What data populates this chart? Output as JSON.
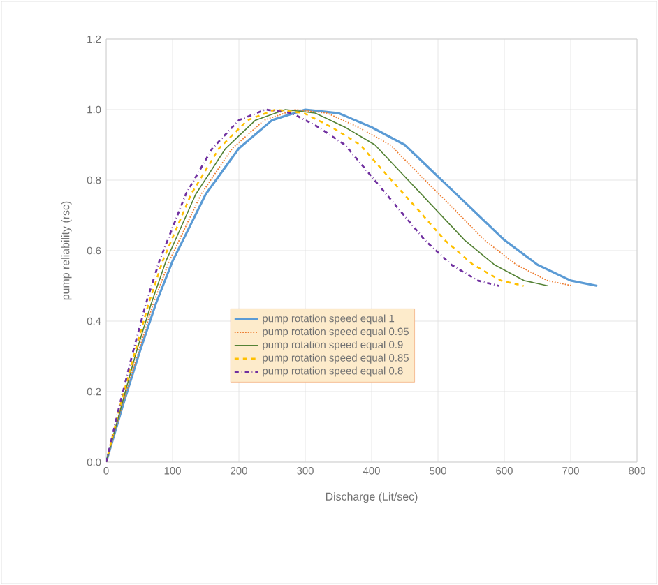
{
  "chart_data": {
    "type": "line",
    "xlabel": "Discharge (Lit/sec)",
    "ylabel": "pump reliability (rsc)",
    "xlim": [
      0,
      800
    ],
    "xticks": [
      0,
      100,
      200,
      300,
      400,
      500,
      600,
      700,
      800
    ],
    "ylim": [
      0,
      1.2
    ],
    "yticks": [
      {
        "value": 0,
        "label": "0.0"
      },
      {
        "value": 0.2,
        "label": "0.2"
      },
      {
        "value": 0.4,
        "label": "0.4"
      },
      {
        "value": 0.6,
        "label": "0.6"
      },
      {
        "value": 0.8,
        "label": "0.8"
      },
      {
        "value": 1.0,
        "label": "1.0"
      },
      {
        "value": 1.2,
        "label": "1.2"
      }
    ],
    "grid": true,
    "legend": "bottom",
    "marker": "none",
    "series": [
      {
        "name": "pump rotation speed equal 1",
        "color": "#5b9bd5",
        "line_style": "solid",
        "x": [
          0,
          25,
          50,
          75,
          100,
          150,
          200,
          250,
          300,
          350,
          400,
          450,
          500,
          550,
          600,
          650,
          700,
          740
        ],
        "values": [
          0,
          0.16,
          0.31,
          0.45,
          0.57,
          0.76,
          0.89,
          0.97,
          1.0,
          0.99,
          0.95,
          0.9,
          0.81,
          0.72,
          0.63,
          0.56,
          0.515,
          0.5
        ]
      },
      {
        "name": "pump rotation speed equal 0.95",
        "color": "#ed7d31",
        "line_style": "dotted",
        "x": [
          0,
          24,
          48,
          71,
          95,
          143,
          190,
          238,
          285,
          333,
          380,
          428,
          475,
          523,
          570,
          618,
          665,
          703
        ],
        "values": [
          0,
          0.16,
          0.31,
          0.45,
          0.57,
          0.76,
          0.89,
          0.97,
          1.0,
          0.99,
          0.95,
          0.9,
          0.81,
          0.72,
          0.63,
          0.56,
          0.515,
          0.5
        ]
      },
      {
        "name": "pump rotation speed equal 0.9",
        "color": "#548235",
        "line_style": "solid",
        "x": [
          0,
          23,
          45,
          68,
          90,
          135,
          180,
          225,
          270,
          315,
          360,
          405,
          450,
          495,
          540,
          585,
          630,
          666
        ],
        "values": [
          0,
          0.16,
          0.31,
          0.45,
          0.57,
          0.76,
          0.89,
          0.97,
          1.0,
          0.99,
          0.95,
          0.9,
          0.81,
          0.72,
          0.63,
          0.56,
          0.515,
          0.5
        ]
      },
      {
        "name": "pump rotation speed equal 0.85",
        "color": "#ffc000",
        "line_style": "dashed",
        "x": [
          0,
          21,
          43,
          64,
          85,
          128,
          170,
          213,
          255,
          298,
          340,
          383,
          425,
          468,
          510,
          553,
          595,
          629
        ],
        "values": [
          0,
          0.16,
          0.31,
          0.45,
          0.57,
          0.76,
          0.89,
          0.97,
          1.0,
          0.99,
          0.95,
          0.9,
          0.81,
          0.72,
          0.63,
          0.56,
          0.515,
          0.5
        ]
      },
      {
        "name": "pump rotation speed equal 0.8",
        "color": "#7030a0",
        "line_style": "dashdot",
        "x": [
          0,
          20,
          40,
          60,
          80,
          120,
          160,
          200,
          240,
          280,
          320,
          360,
          400,
          440,
          480,
          520,
          560,
          592
        ],
        "values": [
          0,
          0.16,
          0.31,
          0.45,
          0.57,
          0.76,
          0.89,
          0.97,
          1.0,
          0.99,
          0.95,
          0.9,
          0.81,
          0.72,
          0.63,
          0.56,
          0.515,
          0.5
        ]
      }
    ]
  }
}
